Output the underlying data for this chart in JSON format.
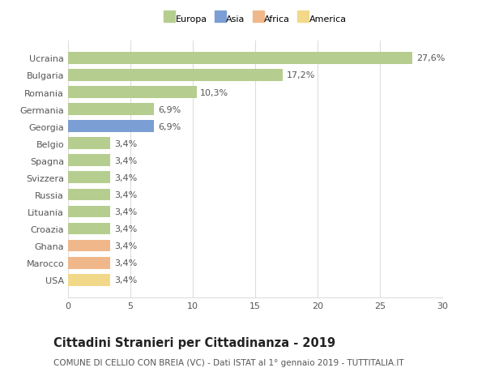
{
  "categories": [
    "USA",
    "Marocco",
    "Ghana",
    "Croazia",
    "Lituania",
    "Russia",
    "Svizzera",
    "Spagna",
    "Belgio",
    "Georgia",
    "Germania",
    "Romania",
    "Bulgaria",
    "Ucraina"
  ],
  "values": [
    3.4,
    3.4,
    3.4,
    3.4,
    3.4,
    3.4,
    3.4,
    3.4,
    3.4,
    6.9,
    6.9,
    10.3,
    17.2,
    27.6
  ],
  "labels": [
    "3,4%",
    "3,4%",
    "3,4%",
    "3,4%",
    "3,4%",
    "3,4%",
    "3,4%",
    "3,4%",
    "3,4%",
    "6,9%",
    "6,9%",
    "10,3%",
    "17,2%",
    "27,6%"
  ],
  "colors": [
    "#f2d98a",
    "#f0b88a",
    "#f0b88a",
    "#b5ce8f",
    "#b5ce8f",
    "#b5ce8f",
    "#b5ce8f",
    "#b5ce8f",
    "#b5ce8f",
    "#7b9fd4",
    "#b5ce8f",
    "#b5ce8f",
    "#b5ce8f",
    "#b5ce8f"
  ],
  "legend_labels": [
    "Europa",
    "Asia",
    "Africa",
    "America"
  ],
  "legend_colors": [
    "#b5ce8f",
    "#7b9fd4",
    "#f0b88a",
    "#f2d98a"
  ],
  "title_bold": "Cittadini Stranieri per Cittadinanza - 2019",
  "subtitle": "COMUNE DI CELLIO CON BREIA (VC) - Dati ISTAT al 1° gennaio 2019 - TUTTITALIA.IT",
  "xlim": [
    0,
    30
  ],
  "xticks": [
    0,
    5,
    10,
    15,
    20,
    25,
    30
  ],
  "bar_height": 0.7,
  "background_color": "#ffffff",
  "grid_color": "#dddddd",
  "text_color": "#555555",
  "label_fontsize": 8,
  "tick_fontsize": 8,
  "title_fontsize": 10.5,
  "subtitle_fontsize": 7.5
}
